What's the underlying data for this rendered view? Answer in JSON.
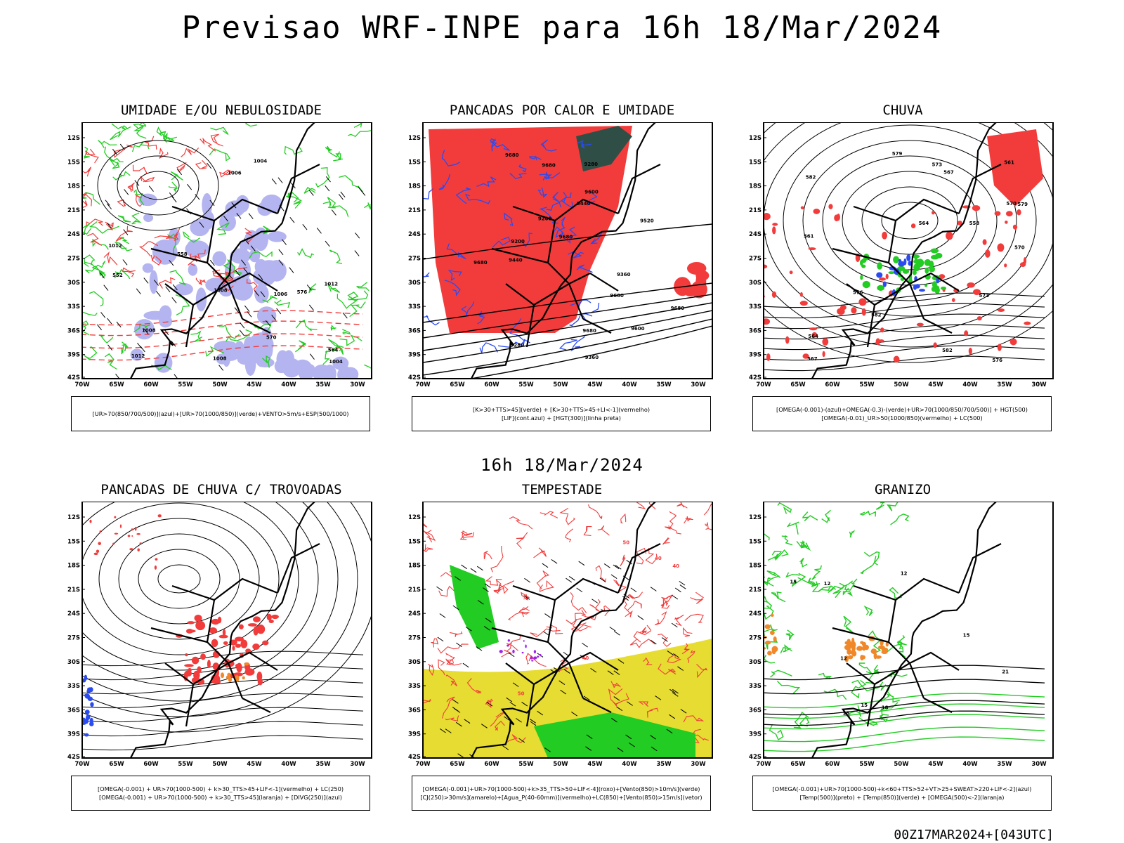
{
  "header": {
    "title": "Previsao WRF-INPE  para 16h 18/Mar/2024"
  },
  "middle_title": "16h 18/Mar/2024",
  "footer": "00Z17MAR2024+[043UTC]",
  "axes": {
    "lat_labels": [
      "12S",
      "15S",
      "18S",
      "21S",
      "24S",
      "27S",
      "30S",
      "33S",
      "36S",
      "39S",
      "42S"
    ],
    "lon_labels": [
      "70W",
      "65W",
      "60W",
      "55W",
      "50W",
      "45W",
      "40W",
      "35W",
      "30W"
    ]
  },
  "panels": [
    {
      "title": "UMIDADE E/OU NEBULOSIDADE",
      "legend": [
        "[UR>70(850/700/500)](azul)+[UR>70(1000/850)](verde)+VENTO>5m/s+ESP(500/1000)"
      ],
      "labels": [
        "1008",
        "1008",
        "1006",
        "1008",
        "1004",
        "1004",
        "1006",
        "1012",
        "1012",
        "1012",
        "576",
        "570",
        "564",
        "558",
        "552"
      ]
    },
    {
      "title": "PANCADAS POR CALOR E UMIDADE",
      "legend": [
        "[K>30+TTS>45](verde) + [K>30+TTS>45+LI<-1](vermelho)",
        "[LIF](cont.azul) + [HGT(300)](linha preta)"
      ],
      "labels": [
        "9680",
        "9680",
        "9680",
        "9680",
        "9600",
        "9600",
        "9680",
        "9680",
        "9600",
        "9520",
        "9440",
        "9360",
        "9280",
        "9200",
        "9440",
        "9360",
        "9280",
        "9200"
      ]
    },
    {
      "title": "CHUVA",
      "legend": [
        "[OMEGA(-0.001)-(azul)+OMEGA(-0.3)-(verde)+UR>70(1000/850/700/500)] + HGT(500)",
        "[OMEGA(-0.01)_UR>50(1000/850)(vermelho) + LC(500)"
      ],
      "labels": [
        "582",
        "582",
        "579",
        "576",
        "573",
        "570",
        "567",
        "564",
        "561",
        "582",
        "579",
        "576",
        "573",
        "570",
        "567",
        "564",
        "561",
        "558"
      ]
    },
    {
      "title": "PANCADAS DE CHUVA C/ TROVOADAS",
      "legend": [
        "[OMEGA(-0.001) + UR>70(1000-500) + k>30_TTS>45+LIF<-1](vermelho) + LC(250)",
        "[OMEGA(-0.001) + UR>70(1000-500) + k>30_TTS>45](laranja) + [DIVG(250)](azul)"
      ],
      "labels": []
    },
    {
      "title": "TEMPESTADE",
      "legend": [
        "[OMEGA(-0.001)+UR>70(1000-500)+k>35_TTS>50+LIF<-4](roxo)+[Vento(850)>10m/s](verde)",
        "[CJ(250)>30m/s](amarelo)+[Agua_P(40-60mm)](vermelho)+LC(850)+[Vento(850)>15m/s](vetor)"
      ],
      "labels": [
        "50",
        "50",
        "40",
        "40",
        "40"
      ]
    },
    {
      "title": "GRANIZO",
      "legend": [
        "[OMEGA(-0.001)+UR>70(1000-500)+k<60+TTS>52+VT>25+SWEAT>220+LIF<-2](azul)",
        "[Temp(500)](preto) + [Temp(850)](verde) + [OMEGA(500)<-2](laranja)"
      ],
      "labels": [
        "12",
        "12",
        "15",
        "18",
        "21",
        "15",
        "12",
        "15",
        "18"
      ]
    }
  ],
  "colors": {
    "red": "#f23c3c",
    "green": "#22cc22",
    "blue": "#2a4bf0",
    "lavender": "#b4b4f0",
    "yellow": "#e6dc32",
    "darkgreen": "#2f4f46",
    "orange": "#f0882a",
    "purple": "#a020f0",
    "black": "#000000"
  }
}
